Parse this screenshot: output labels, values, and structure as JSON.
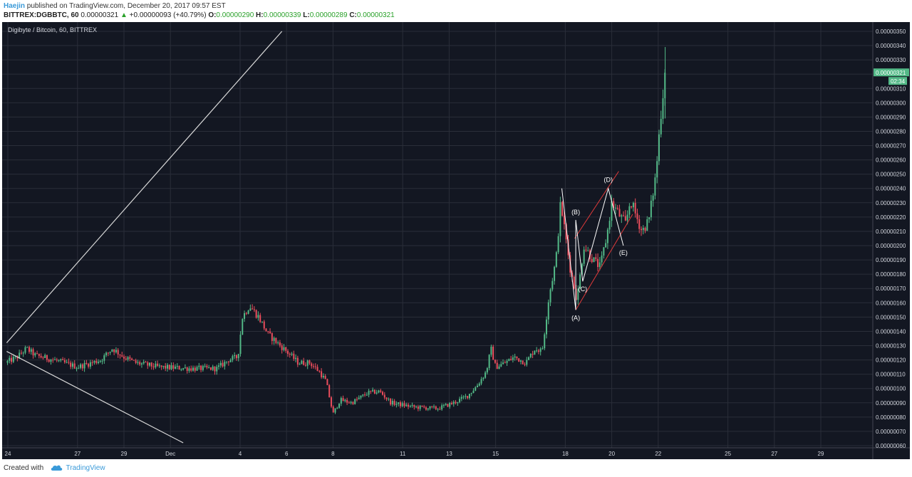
{
  "header": {
    "author": "Haejin",
    "published_text": "published on TradingView.com, December 20, 2017 09:57 EST",
    "symbol": "BITTREX:DGBBTC, 60",
    "last": "0.00000321",
    "change_arrow": "▲",
    "change": "+0.00000093 (+40.79%)",
    "open_label": "O:",
    "open": "0.00000290",
    "high_label": "H:",
    "high": "0.00000339",
    "low_label": "L:",
    "low": "0.00000289",
    "close_label": "C:",
    "close": "0.00000321"
  },
  "footer": {
    "created_with": "Created with",
    "brand": "TradingView",
    "icon": "tradingview-cloud-icon"
  },
  "colors": {
    "background": "#131722",
    "grid": "#2a2e39",
    "up": "#53b987",
    "down": "#eb4d5c",
    "trendline": "#d9d9d9",
    "channel": "#e03a3a",
    "price_tag": "#53b987",
    "text": "#d1d4dc"
  },
  "chart_data": {
    "type": "candlestick",
    "title": "Digibyte / Bitcoin, 60, BITTREX",
    "xlabel": "",
    "ylabel": "",
    "ylim": [
      6e-07,
      3.5e-06
    ],
    "y_ticks": [
      "0.00000350",
      "0.00000340",
      "0.00000330",
      "0.00000320",
      "0.00000310",
      "0.00000300",
      "0.00000290",
      "0.00000280",
      "0.00000270",
      "0.00000260",
      "0.00000250",
      "0.00000240",
      "0.00000230",
      "0.00000220",
      "0.00000210",
      "0.00000200",
      "0.00000190",
      "0.00000180",
      "0.00000170",
      "0.00000160",
      "0.00000150",
      "0.00000140",
      "0.00000130",
      "0.00000120",
      "0.00000110",
      "0.00000100",
      "0.00000090",
      "0.00000080",
      "0.00000070",
      "0.00000060"
    ],
    "x_ticks": [
      {
        "label": "24",
        "t": 0
      },
      {
        "label": "27",
        "t": 3
      },
      {
        "label": "29",
        "t": 5
      },
      {
        "label": "Dec",
        "t": 7
      },
      {
        "label": "4",
        "t": 10
      },
      {
        "label": "6",
        "t": 12
      },
      {
        "label": "8",
        "t": 14
      },
      {
        "label": "11",
        "t": 17
      },
      {
        "label": "13",
        "t": 19
      },
      {
        "label": "15",
        "t": 21
      },
      {
        "label": "18",
        "t": 24
      },
      {
        "label": "20",
        "t": 26
      },
      {
        "label": "22",
        "t": 28
      },
      {
        "label": "25",
        "t": 31
      },
      {
        "label": "27",
        "t": 33
      },
      {
        "label": "29",
        "t": 35
      }
    ],
    "price_anchors": [
      [
        -0.1,
        118
      ],
      [
        0.4,
        122
      ],
      [
        0.8,
        128
      ],
      [
        1.2,
        123
      ],
      [
        2.0,
        120
      ],
      [
        3.0,
        115
      ],
      [
        4.0,
        120
      ],
      [
        4.5,
        128
      ],
      [
        5.0,
        122
      ],
      [
        5.5,
        118
      ],
      [
        6.5,
        115
      ],
      [
        8.0,
        114
      ],
      [
        9.0,
        114
      ],
      [
        9.5,
        120
      ],
      [
        9.9,
        122
      ],
      [
        10.1,
        150
      ],
      [
        10.4,
        158
      ],
      [
        10.8,
        150
      ],
      [
        11.2,
        138
      ],
      [
        11.6,
        132
      ],
      [
        12.0,
        126
      ],
      [
        12.5,
        118
      ],
      [
        13.0,
        118
      ],
      [
        13.4,
        112
      ],
      [
        13.7,
        105
      ],
      [
        14.0,
        82
      ],
      [
        14.3,
        92
      ],
      [
        14.8,
        90
      ],
      [
        15.5,
        97
      ],
      [
        16.0,
        98
      ],
      [
        16.5,
        90
      ],
      [
        17.5,
        87
      ],
      [
        18.5,
        86
      ],
      [
        19.2,
        90
      ],
      [
        19.8,
        95
      ],
      [
        20.2,
        102
      ],
      [
        20.6,
        112
      ],
      [
        20.8,
        128
      ],
      [
        21.0,
        115
      ],
      [
        21.4,
        118
      ],
      [
        21.8,
        122
      ],
      [
        22.3,
        118
      ],
      [
        22.7,
        128
      ],
      [
        23.0,
        126
      ],
      [
        23.3,
        165
      ],
      [
        23.6,
        190
      ],
      [
        23.8,
        230
      ],
      [
        24.0,
        208
      ],
      [
        24.2,
        185
      ],
      [
        24.5,
        162
      ],
      [
        24.8,
        200
      ],
      [
        25.2,
        190
      ],
      [
        25.5,
        185
      ],
      [
        25.8,
        208
      ],
      [
        26.0,
        230
      ],
      [
        26.3,
        222
      ],
      [
        26.6,
        215
      ],
      [
        26.8,
        232
      ],
      [
        27.0,
        223
      ],
      [
        27.3,
        210
      ],
      [
        27.6,
        218
      ],
      [
        27.9,
        250
      ],
      [
        28.1,
        290
      ],
      [
        28.3,
        321
      ]
    ],
    "series": [
      {
        "name": "DGBBTC",
        "ohlc_last": {
          "open": 2.9e-06,
          "high": 3.39e-06,
          "low": 2.89e-06,
          "close": 3.21e-06
        }
      }
    ],
    "last_price_label": "0.00000321",
    "countdown_label": "02:34",
    "annotations": {
      "waves": [
        {
          "label": "(A)",
          "t": 24.45,
          "price": 155
        },
        {
          "label": "(B)",
          "t": 24.45,
          "price": 218
        },
        {
          "label": "(C)",
          "t": 24.75,
          "price": 175
        },
        {
          "label": "(D)",
          "t": 25.85,
          "price": 240
        },
        {
          "label": "(E)",
          "t": 26.5,
          "price": 200
        }
      ],
      "channel_lines": [
        [
          [
            24.45,
            155
          ],
          [
            26.9,
            222
          ]
        ],
        [
          [
            24.4,
            205
          ],
          [
            26.3,
            252
          ]
        ]
      ],
      "trendlines": [
        [
          [
            -0.05,
            132
          ],
          [
            11.8,
            350
          ]
        ],
        [
          [
            -0.05,
            126
          ],
          [
            7.55,
            62
          ]
        ]
      ]
    }
  }
}
